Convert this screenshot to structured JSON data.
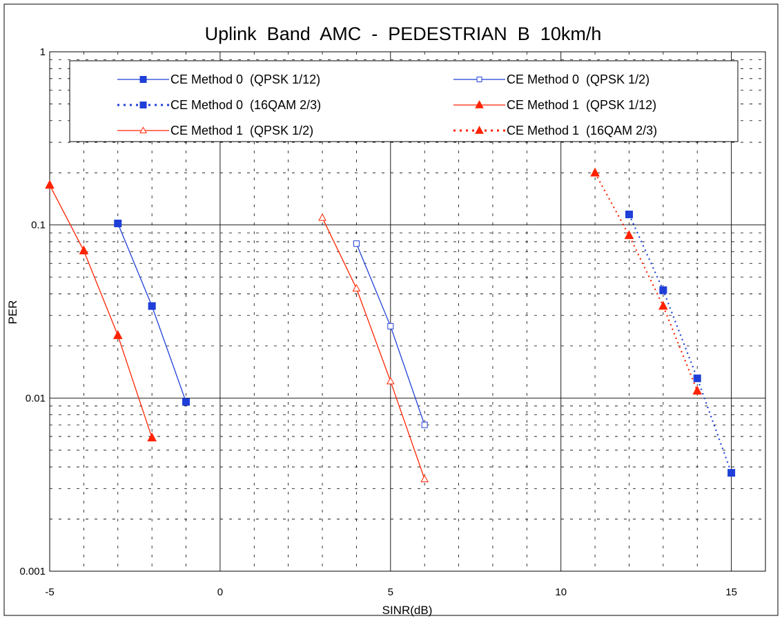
{
  "chart_data": {
    "type": "line",
    "title": "Uplink  Band  AMC  -  PEDESTRIAN  B  10km/h",
    "xlabel": "SINR(dB)",
    "ylabel": "PER",
    "xlim": [
      -5,
      16
    ],
    "ylim": [
      0.001,
      1
    ],
    "yscale": "log",
    "grid": true,
    "legend_position": "top",
    "x_ticks": [
      -5,
      0,
      5,
      10,
      15
    ],
    "x_tick_labels": [
      "-5",
      "0",
      "5",
      "10",
      "15"
    ],
    "y_ticks": [
      1,
      0.1,
      0.01,
      0.001
    ],
    "y_tick_labels": [
      "1",
      "0.1",
      "0.01",
      "0.001"
    ],
    "series": [
      {
        "name": "CE Method 0  (QPSK 1/12)",
        "color": "#1f3fd8",
        "line": "solid",
        "marker": "square-filled",
        "x": [
          -3,
          -2,
          -1
        ],
        "y": [
          0.102,
          0.034,
          0.0095
        ]
      },
      {
        "name": "CE Method 0  (QPSK 1/2)",
        "color": "#1f3fd8",
        "line": "solid",
        "marker": "square-open",
        "x": [
          4,
          5,
          6
        ],
        "y": [
          0.078,
          0.026,
          0.007
        ]
      },
      {
        "name": "CE Method 0  (16QAM 2/3)",
        "color": "#1f3fd8",
        "line": "dotted",
        "marker": "square-filled",
        "x": [
          12,
          13,
          14,
          15
        ],
        "y": [
          0.115,
          0.042,
          0.013,
          0.0037
        ]
      },
      {
        "name": "CE Method 1  (QPSK 1/12)",
        "color": "#ff2200",
        "line": "solid",
        "marker": "triangle-filled",
        "x": [
          -5,
          -4,
          -3,
          -2
        ],
        "y": [
          0.17,
          0.071,
          0.023,
          0.0059
        ]
      },
      {
        "name": "CE Method 1  (QPSK 1/2)",
        "color": "#ff2200",
        "line": "solid",
        "marker": "triangle-open",
        "x": [
          3,
          4,
          5,
          6
        ],
        "y": [
          0.11,
          0.043,
          0.0125,
          0.0034
        ]
      },
      {
        "name": "CE Method 1  (16QAM 2/3)",
        "color": "#ff2200",
        "line": "dotted",
        "marker": "triangle-filled",
        "x": [
          11,
          12,
          13,
          14
        ],
        "y": [
          0.2,
          0.087,
          0.034,
          0.011
        ]
      }
    ]
  }
}
